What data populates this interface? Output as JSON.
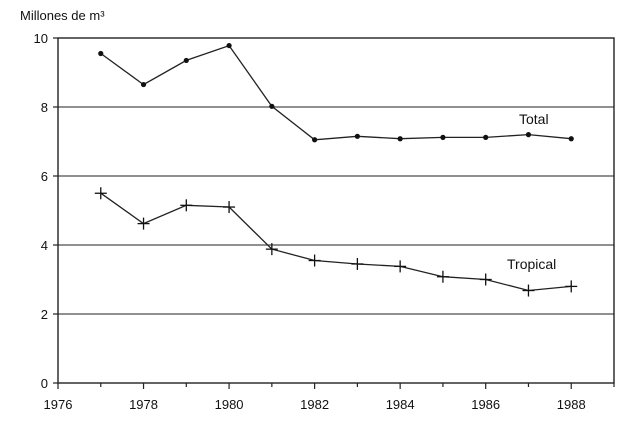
{
  "chart_data": {
    "type": "line",
    "ylabel": "Millones de m³",
    "xlim": [
      1976,
      1989
    ],
    "ylim": [
      0,
      10
    ],
    "x_ticks": [
      1976,
      1978,
      1980,
      1982,
      1984,
      1986,
      1988
    ],
    "y_ticks": [
      0,
      2,
      4,
      6,
      8,
      10
    ],
    "grid": "horizontal",
    "series": [
      {
        "name": "Total",
        "marker": "dot",
        "x": [
          1977,
          1978,
          1979,
          1980,
          1981,
          1982,
          1983,
          1984,
          1985,
          1986,
          1987,
          1988
        ],
        "y": [
          9.55,
          8.65,
          9.35,
          9.78,
          8.02,
          7.05,
          7.15,
          7.08,
          7.12,
          7.12,
          7.2,
          7.08
        ]
      },
      {
        "name": "Tropical",
        "marker": "plus",
        "x": [
          1977,
          1978,
          1979,
          1980,
          1981,
          1982,
          1983,
          1984,
          1985,
          1986,
          1987,
          1988
        ],
        "y": [
          5.5,
          4.62,
          5.15,
          5.1,
          3.88,
          3.55,
          3.45,
          3.38,
          3.08,
          3.0,
          2.68,
          2.8
        ]
      }
    ]
  }
}
